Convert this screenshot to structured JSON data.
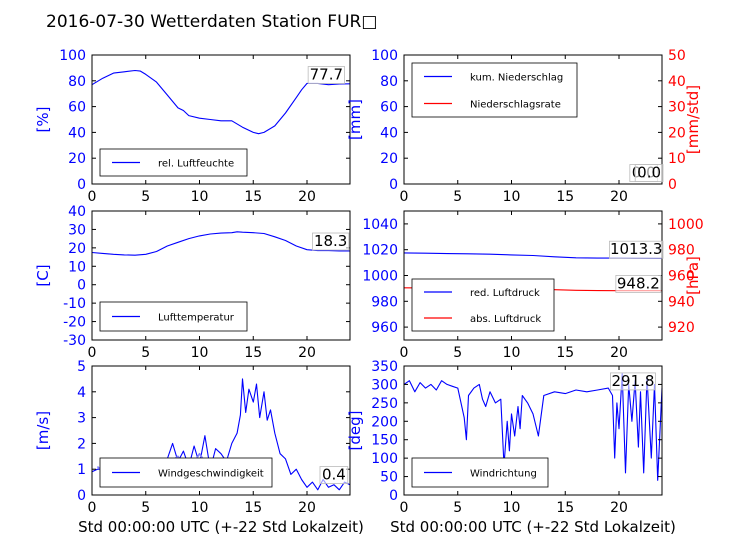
{
  "title": "2016-07-30 Wetterdaten Station FUR□",
  "colors": {
    "left_axis": "#0000ff",
    "right_axis": "#ff0000",
    "series_left": "#0000ff",
    "series_right": "#ff0000",
    "wind_band": "#8080ff"
  },
  "xlabel": "Std 00:00:00 UTC (+-22 Std Lokalzeit)",
  "chart_data": [
    {
      "type": "line",
      "ylabel": "[%]",
      "xlim": [
        0,
        24
      ],
      "ylim": [
        0,
        100
      ],
      "xticks": [
        0,
        5,
        10,
        15,
        20
      ],
      "yticks": [
        0,
        20,
        40,
        60,
        80,
        100
      ],
      "legend": "bottom-left",
      "series": [
        {
          "name": "rel. Luftfeuchte",
          "axis": "left",
          "x": [
            0,
            1,
            2,
            3,
            4,
            4.5,
            5,
            6,
            7,
            7.5,
            8,
            8.5,
            9,
            10,
            11,
            12,
            13,
            14,
            15,
            15.5,
            16,
            17,
            18,
            19,
            19.5,
            20,
            21,
            22,
            23,
            24
          ],
          "y": [
            77,
            82,
            86,
            87,
            88,
            87.5,
            85,
            79,
            69,
            64,
            59,
            57,
            53,
            51,
            50,
            49,
            49,
            44,
            40,
            39,
            40,
            45,
            55,
            67,
            73,
            78,
            78,
            77,
            77.5,
            77.7
          ]
        }
      ],
      "annotations": [
        {
          "text": "77.7",
          "x": 21.8,
          "y": 81
        }
      ]
    },
    {
      "type": "line",
      "ylabel": "[mm]",
      "ylabel_right": "[mm/std]",
      "xlim": [
        0,
        24
      ],
      "ylim": [
        0,
        100
      ],
      "ylim_right": [
        0,
        50
      ],
      "xticks": [
        0,
        5,
        10,
        15,
        20
      ],
      "yticks": [
        0,
        20,
        40,
        60,
        80,
        100
      ],
      "yticks_right": [
        0,
        10,
        20,
        30,
        40,
        50
      ],
      "legend": "top-left",
      "series": [
        {
          "name": "kum. Niederschlag",
          "axis": "left",
          "x": [
            0,
            24
          ],
          "y": [
            0,
            0
          ]
        },
        {
          "name": "Niederschlagsrate",
          "axis": "right",
          "x": [
            0,
            24
          ],
          "y": [
            0,
            0
          ]
        }
      ],
      "annotations": [
        {
          "text": "0.0",
          "x": 22.3,
          "y": 5
        },
        {
          "text": "0.0",
          "x": 22.8,
          "y": 5
        }
      ]
    },
    {
      "type": "line",
      "ylabel": "[C]",
      "xlim": [
        0,
        24
      ],
      "ylim": [
        -30,
        40
      ],
      "xticks": [
        0,
        5,
        10,
        15,
        20
      ],
      "yticks": [
        -30,
        -20,
        -10,
        0,
        10,
        20,
        30,
        40
      ],
      "legend": "bottom-left",
      "series": [
        {
          "name": "Lufttemperatur",
          "axis": "left",
          "x": [
            0,
            1,
            2,
            3,
            4,
            5,
            6,
            7,
            8,
            9,
            10,
            11,
            12,
            13,
            13.5,
            14,
            15,
            16,
            17,
            18,
            19,
            20,
            21,
            22,
            23,
            24
          ],
          "y": [
            17.5,
            17,
            16.5,
            16.2,
            16,
            16.5,
            18,
            21,
            23,
            25,
            26.5,
            27.5,
            28,
            28.2,
            28.7,
            28.5,
            28.2,
            27.8,
            26,
            24,
            21,
            19,
            18.5,
            18.5,
            18.3,
            18.3
          ]
        }
      ],
      "annotations": [
        {
          "text": "18.3",
          "x": 22.2,
          "y": 21
        }
      ]
    },
    {
      "type": "line",
      "ylabel_right": "[hPa]",
      "xlim": [
        0,
        24
      ],
      "ylim": [
        950,
        1050
      ],
      "ylim_right": [
        910,
        1010
      ],
      "xticks": [
        0,
        5,
        10,
        15,
        20
      ],
      "yticks": [
        960,
        980,
        1000,
        1020,
        1040
      ],
      "yticks_right": [
        920,
        940,
        960,
        980,
        1000
      ],
      "legend": "bottom-left",
      "series": [
        {
          "name": "red. Luftdruck",
          "axis": "left",
          "x": [
            0,
            2,
            4,
            6,
            8,
            10,
            12,
            14,
            16,
            18,
            20,
            22,
            24
          ],
          "y": [
            1017.5,
            1017.3,
            1017,
            1016.8,
            1016.5,
            1016,
            1015.5,
            1014.5,
            1013.7,
            1013.5,
            1013.5,
            1013.4,
            1013.3
          ]
        },
        {
          "name": "abs. Luftdruck",
          "axis": "right",
          "x": [
            0,
            2,
            4,
            6,
            8,
            10,
            12,
            14,
            16,
            18,
            20,
            22,
            24
          ],
          "y": [
            950.5,
            950.4,
            950.3,
            950.2,
            950,
            949.8,
            949.5,
            949,
            948.5,
            948.3,
            948.2,
            948.2,
            948.2
          ]
        }
      ],
      "annotations": [
        {
          "text": "1013.3",
          "x": 21.6,
          "y": 1016.5
        },
        {
          "text": "948.2",
          "x": 21.8,
          "y": 990
        }
      ]
    },
    {
      "type": "line",
      "ylabel": "[m/s]",
      "xlim": [
        0,
        24
      ],
      "ylim": [
        0,
        5
      ],
      "xticks": [
        0,
        5,
        10,
        15,
        20
      ],
      "yticks": [
        0,
        1,
        2,
        3,
        4,
        5
      ],
      "legend": "bottom-left",
      "series": [
        {
          "name": "Windgeschwindigkeit",
          "axis": "left",
          "x": [
            0,
            0.5,
            1,
            2,
            3,
            4,
            5,
            6,
            7,
            7.5,
            8,
            8.5,
            9,
            9.5,
            10,
            10.5,
            11,
            11.5,
            12,
            12.5,
            13,
            13.5,
            13.8,
            14,
            14.3,
            14.6,
            15,
            15.3,
            15.6,
            16,
            16.3,
            16.6,
            17,
            17.5,
            18,
            18.5,
            19,
            19.5,
            20,
            20.5,
            21,
            21.5,
            22,
            22.5,
            23,
            23.5,
            24
          ],
          "y": [
            0.9,
            1.0,
            1.0,
            1.2,
            1.1,
            1.3,
            0.9,
            1.3,
            1.4,
            2.0,
            1.3,
            1.7,
            1.1,
            1.9,
            1.2,
            2.3,
            1.0,
            1.8,
            1.6,
            1.3,
            2.0,
            2.4,
            3.1,
            4.5,
            3.2,
            4.1,
            3.6,
            4.3,
            3.0,
            4.0,
            2.9,
            3.3,
            2.4,
            1.6,
            1.4,
            0.8,
            1.0,
            0.6,
            0.3,
            0.5,
            0.2,
            0.6,
            0.3,
            0.4,
            0.2,
            0.5,
            0.4
          ]
        },
        {
          "name": "",
          "axis": "left",
          "band": true,
          "x": [
            0.5,
            2,
            3,
            4,
            5,
            6,
            7,
            8,
            9,
            10,
            11,
            12
          ],
          "y": [
            1.1,
            0.6,
            1.3,
            0.7,
            1.4,
            0.8,
            1.2,
            1.5,
            0.9,
            1.6,
            1.0,
            1.2
          ]
        }
      ],
      "annotations": [
        {
          "text": "0.4",
          "x": 22.5,
          "y": 0.6
        }
      ]
    },
    {
      "type": "line",
      "ylabel": "[deg]",
      "xlim": [
        0,
        24
      ],
      "ylim": [
        0,
        350
      ],
      "xticks": [
        0,
        5,
        10,
        15,
        20
      ],
      "yticks": [
        0,
        50,
        100,
        150,
        200,
        250,
        300,
        350
      ],
      "legend": "bottom-left",
      "series": [
        {
          "name": "Windrichtung",
          "axis": "left",
          "x": [
            0,
            0.5,
            1,
            1.5,
            2,
            2.5,
            3,
            3.5,
            4,
            4.5,
            5,
            5.3,
            5.6,
            5.8,
            6,
            6.5,
            7,
            7.3,
            7.6,
            8,
            8.5,
            9,
            9.3,
            9.6,
            9.8,
            10,
            10.3,
            10.6,
            10.8,
            11,
            11.5,
            12,
            12.5,
            13,
            14,
            15,
            16,
            17,
            18,
            19,
            19.4,
            19.6,
            19.8,
            20,
            20.3,
            20.6,
            20.9,
            21.2,
            21.5,
            21.8,
            22,
            22.3,
            22.6,
            23,
            23.3,
            23.6,
            24
          ],
          "y": [
            300,
            310,
            280,
            305,
            290,
            300,
            285,
            310,
            300,
            295,
            290,
            250,
            210,
            150,
            270,
            290,
            300,
            260,
            240,
            280,
            250,
            260,
            80,
            200,
            120,
            220,
            160,
            240,
            180,
            270,
            250,
            220,
            160,
            270,
            280,
            275,
            285,
            280,
            285,
            290,
            270,
            100,
            250,
            180,
            330,
            60,
            300,
            200,
            310,
            130,
            280,
            60,
            320,
            100,
            300,
            40,
            290
          ]
        }
      ],
      "annotations": [
        {
          "text": "291.8",
          "x": 21.3,
          "y": 296
        }
      ]
    }
  ]
}
